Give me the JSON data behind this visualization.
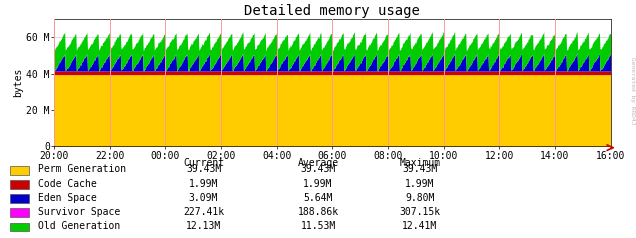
{
  "title": "Detailed memory usage",
  "ylabel": "bytes",
  "background_color": "#ffffff",
  "plot_bg_color": "#ffffff",
  "x_ticks_labels": [
    "20:00",
    "22:00",
    "00:00",
    "02:00",
    "04:00",
    "06:00",
    "08:00",
    "10:00",
    "12:00",
    "14:00",
    "16:00"
  ],
  "ylim": [
    0,
    70000000
  ],
  "yticks": [
    0,
    20000000,
    40000000,
    60000000
  ],
  "ytick_labels": [
    "0",
    "20 M",
    "40 M",
    "60 M"
  ],
  "colors": {
    "perm_gen": "#ffcc00",
    "code_cache": "#cc0000",
    "eden_space": "#0000cc",
    "survivor_space": "#ff00ff",
    "old_gen": "#00cc00"
  },
  "legend": [
    {
      "label": "Perm Generation",
      "color": "#ffcc00",
      "current": "39.43M",
      "average": "39.43M",
      "maximum": "39.43M"
    },
    {
      "label": "Code Cache",
      "color": "#cc0000",
      "current": "1.99M",
      "average": "1.99M",
      "maximum": "1.99M"
    },
    {
      "label": "Eden Space",
      "color": "#0000cc",
      "current": "3.09M",
      "average": "5.64M",
      "maximum": "9.80M"
    },
    {
      "label": "Survivor Space",
      "color": "#ff00ff",
      "current": "227.41k",
      "average": "188.86k",
      "maximum": "307.15k"
    },
    {
      "label": "Old Generation",
      "color": "#00cc00",
      "current": "12.13M",
      "average": "11.53M",
      "maximum": "12.41M"
    }
  ],
  "grid_color": "#ff9999",
  "watermark": "Generated by RRD4J",
  "n_points": 1000,
  "perm_gen_base": 39430000,
  "code_cache_base": 1990000,
  "eden_max": 9800000,
  "survivor_max": 307150,
  "old_gen_avg": 11530000,
  "old_gen_max": 12410000,
  "old_gen_min": 10500000
}
